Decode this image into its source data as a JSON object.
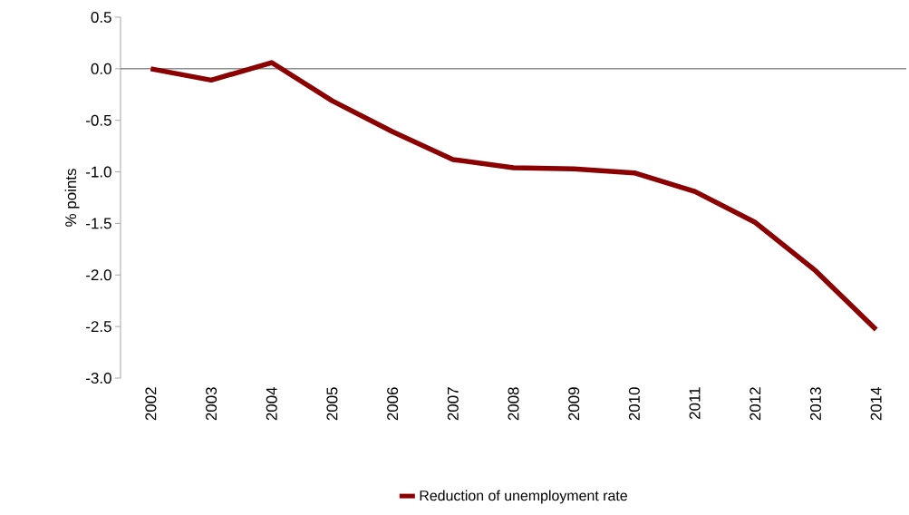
{
  "chart_data": {
    "type": "line",
    "ylabel": "% points",
    "categories": [
      "2002",
      "2003",
      "2004",
      "2005",
      "2006",
      "2007",
      "2008",
      "2009",
      "2010",
      "2011",
      "2012",
      "2013",
      "2014"
    ],
    "series": [
      {
        "name": "Reduction of unemployment rate",
        "color": "#8b0000",
        "values": [
          0.0,
          -0.11,
          0.06,
          -0.31,
          -0.61,
          -0.88,
          -0.96,
          -0.97,
          -1.01,
          -1.19,
          -1.49,
          -1.96,
          -2.53
        ]
      }
    ],
    "ylim": [
      -3.0,
      0.5
    ],
    "yticks": [
      {
        "value": 0.5,
        "label": "0.5"
      },
      {
        "value": 0.0,
        "label": "0.0"
      },
      {
        "value": -0.5,
        "label": "-0.5"
      },
      {
        "value": -1.0,
        "label": "-1.0"
      },
      {
        "value": -1.5,
        "label": "-1.5"
      },
      {
        "value": -2.0,
        "label": "-2.0"
      },
      {
        "value": -2.5,
        "label": "-2.5"
      },
      {
        "value": -3.0,
        "label": "-3.0"
      }
    ],
    "ref_lines": [
      {
        "axis": "y",
        "value": 0,
        "color": "#555555"
      }
    ],
    "legend": "bottom",
    "grid": false,
    "marker": "none",
    "line_style": "solid"
  }
}
